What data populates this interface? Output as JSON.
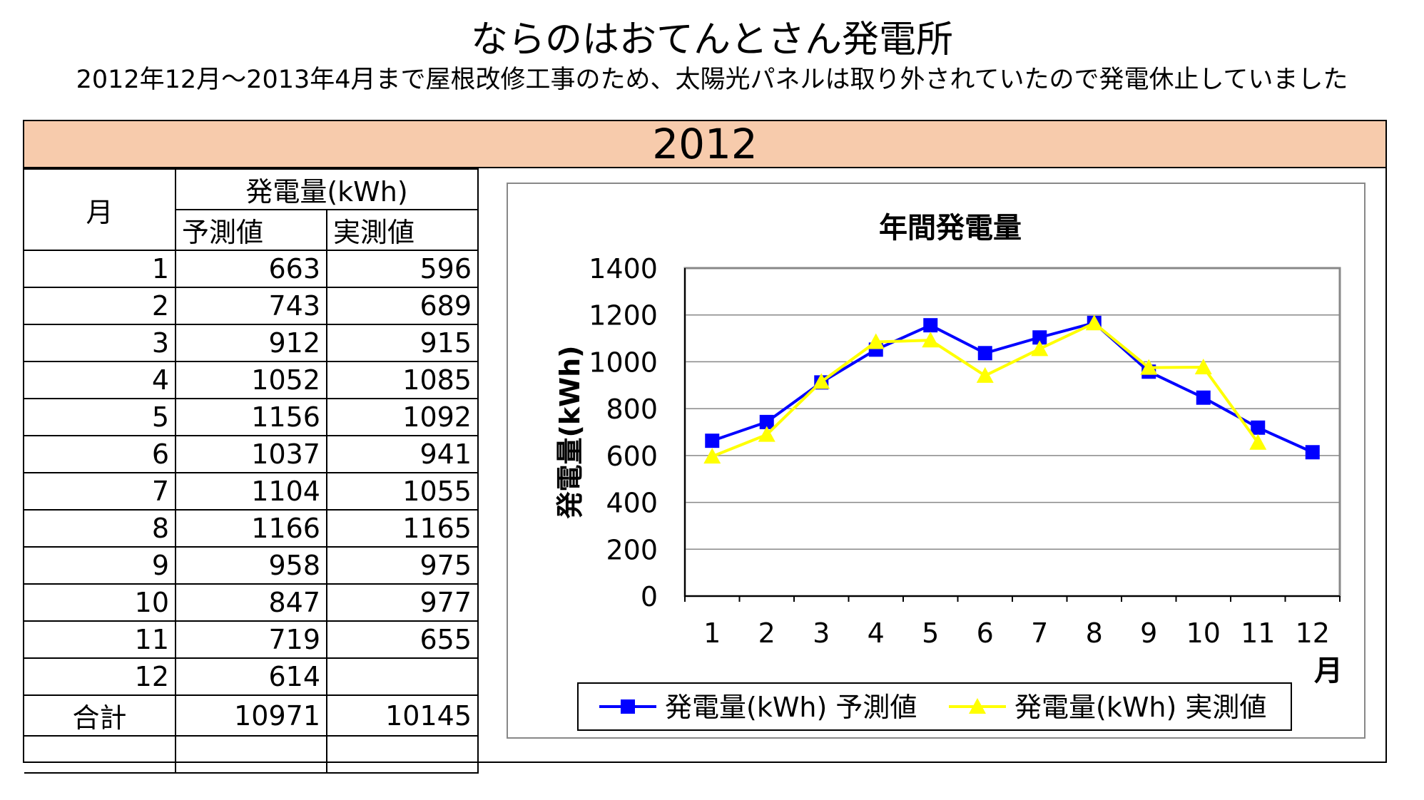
{
  "page": {
    "title": "ならのはおてんとさん発電所",
    "subtitle": "2012年12月～2013年4月まで屋根改修工事のため、太陽光パネルは取り外されていたので発電休止していました",
    "year": "2012"
  },
  "table": {
    "col_month": "月",
    "col_group": "発電量(kWh)",
    "col_forecast": "予測値",
    "col_actual": "実測値",
    "rows": [
      {
        "month": "1",
        "forecast": "663",
        "actual": "596"
      },
      {
        "month": "2",
        "forecast": "743",
        "actual": "689"
      },
      {
        "month": "3",
        "forecast": "912",
        "actual": "915"
      },
      {
        "month": "4",
        "forecast": "1052",
        "actual": "1085"
      },
      {
        "month": "5",
        "forecast": "1156",
        "actual": "1092"
      },
      {
        "month": "6",
        "forecast": "1037",
        "actual": "941"
      },
      {
        "month": "7",
        "forecast": "1104",
        "actual": "1055"
      },
      {
        "month": "8",
        "forecast": "1166",
        "actual": "1165"
      },
      {
        "month": "9",
        "forecast": "958",
        "actual": "975"
      },
      {
        "month": "10",
        "forecast": "847",
        "actual": "977"
      },
      {
        "month": "11",
        "forecast": "719",
        "actual": "655"
      },
      {
        "month": "12",
        "forecast": "614",
        "actual": ""
      }
    ],
    "total_label": "合計",
    "total_forecast": "10971",
    "total_actual": "10145"
  },
  "chart_data": {
    "type": "line",
    "title": "年間発電量",
    "xlabel": "月",
    "ylabel": "発電量(kWh)",
    "categories": [
      "1",
      "2",
      "3",
      "4",
      "5",
      "6",
      "7",
      "8",
      "9",
      "10",
      "11",
      "12"
    ],
    "ylim": [
      0,
      1400
    ],
    "yticks": [
      0,
      200,
      400,
      600,
      800,
      1000,
      1200,
      1400
    ],
    "grid": true,
    "legend_position": "bottom",
    "series": [
      {
        "name": "発電量(kWh) 予測値",
        "color": "#0000ff",
        "marker": "square",
        "values": [
          663,
          743,
          912,
          1052,
          1156,
          1037,
          1104,
          1166,
          958,
          847,
          719,
          614
        ]
      },
      {
        "name": "発電量(kWh) 実測値",
        "color": "#ffff00",
        "marker": "triangle",
        "values": [
          596,
          689,
          915,
          1085,
          1092,
          941,
          1055,
          1165,
          975,
          977,
          655,
          null
        ]
      }
    ]
  }
}
